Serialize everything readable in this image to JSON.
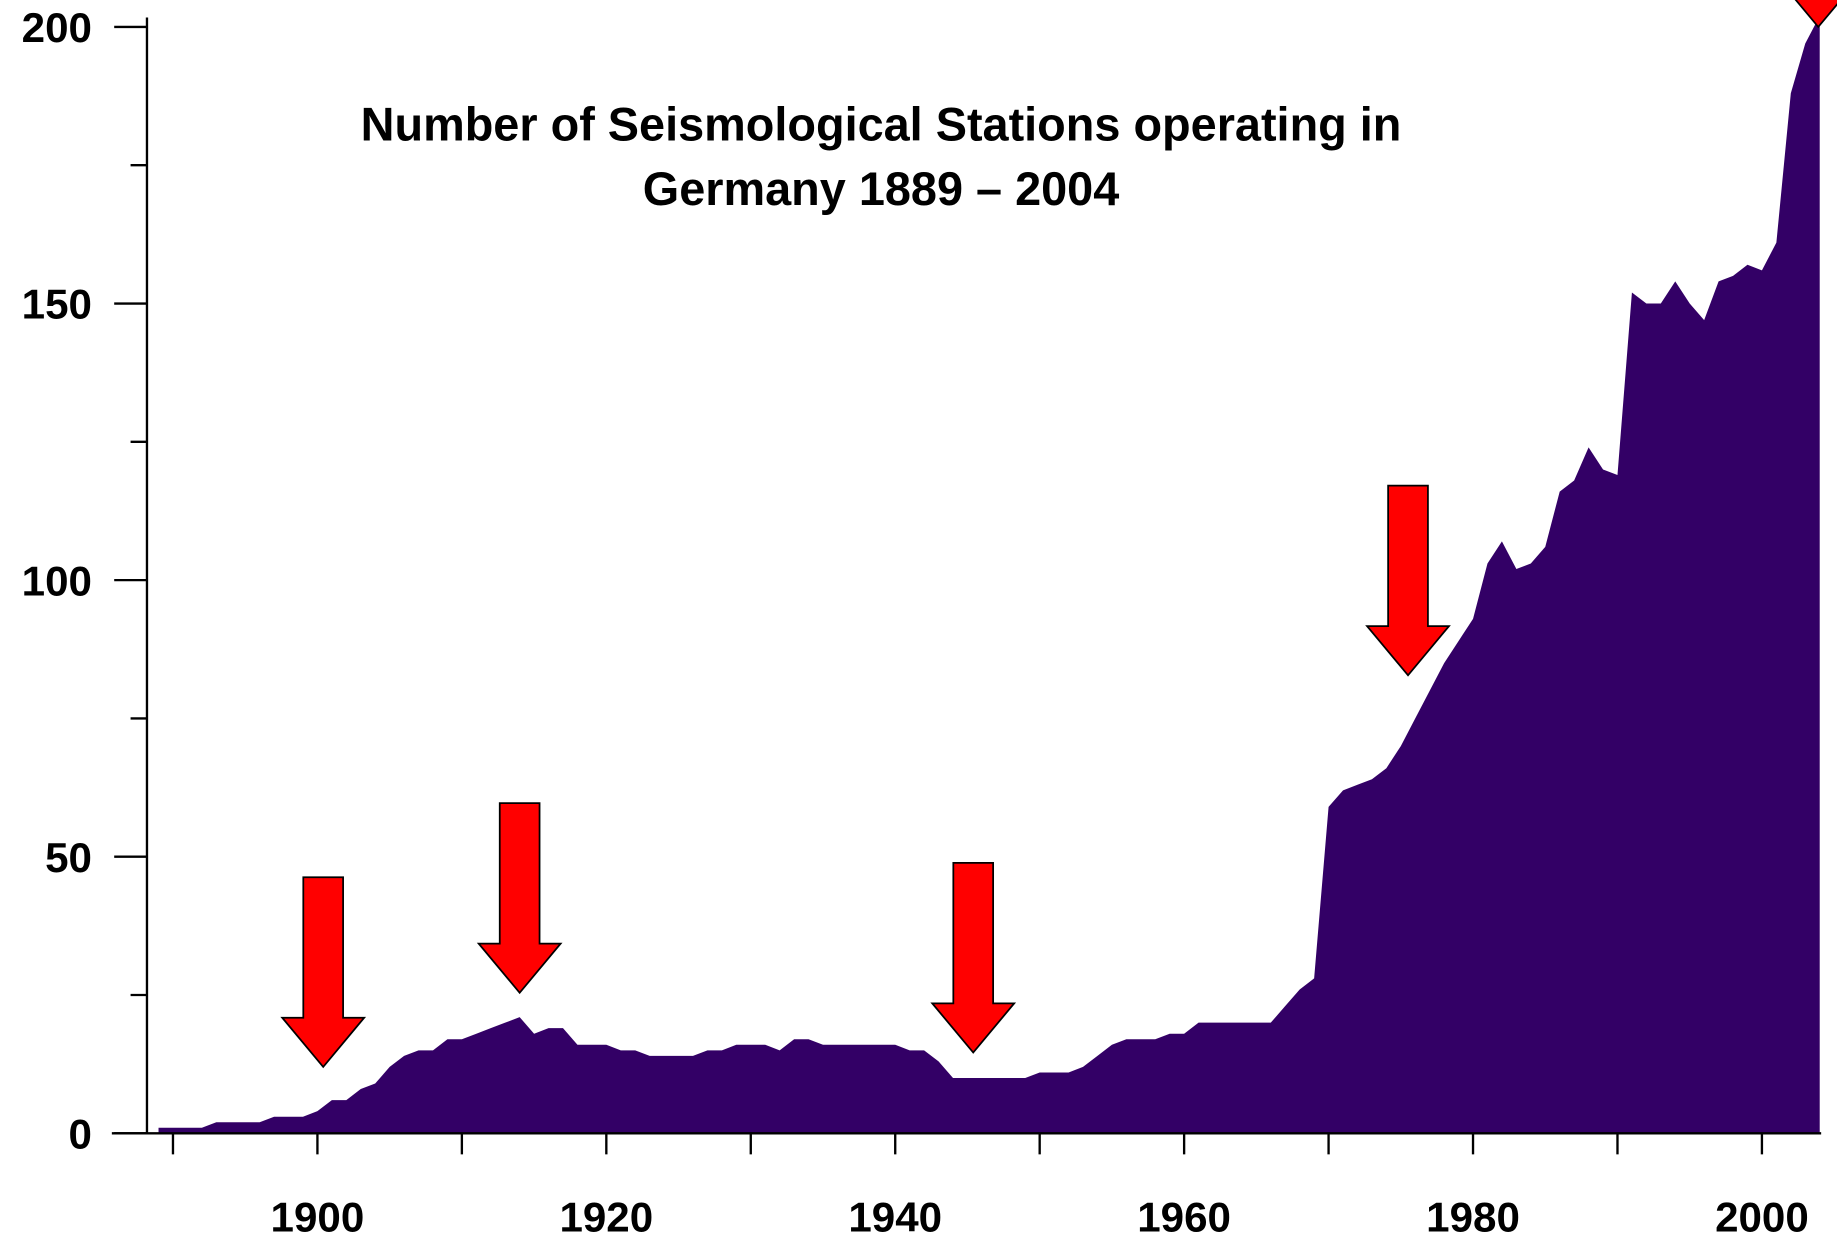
{
  "chart_data": {
    "type": "area",
    "title": [
      "Number of Seismological Stations operating in",
      "Germany 1889 – 2004"
    ],
    "color": "#330066",
    "x": [
      1889,
      1890,
      1891,
      1892,
      1893,
      1894,
      1895,
      1896,
      1897,
      1898,
      1899,
      1900,
      1901,
      1902,
      1903,
      1904,
      1905,
      1906,
      1907,
      1908,
      1909,
      1910,
      1911,
      1912,
      1913,
      1914,
      1915,
      1916,
      1917,
      1918,
      1919,
      1920,
      1921,
      1922,
      1923,
      1924,
      1925,
      1926,
      1927,
      1928,
      1929,
      1930,
      1931,
      1932,
      1933,
      1934,
      1935,
      1936,
      1937,
      1938,
      1939,
      1940,
      1941,
      1942,
      1943,
      1944,
      1945,
      1946,
      1947,
      1948,
      1949,
      1950,
      1951,
      1952,
      1953,
      1954,
      1955,
      1956,
      1957,
      1958,
      1959,
      1960,
      1961,
      1962,
      1963,
      1964,
      1965,
      1966,
      1967,
      1968,
      1969,
      1970,
      1971,
      1972,
      1973,
      1974,
      1975,
      1976,
      1977,
      1978,
      1979,
      1980,
      1981,
      1982,
      1983,
      1984,
      1985,
      1986,
      1987,
      1988,
      1989,
      1990,
      1991,
      1992,
      1993,
      1994,
      1995,
      1996,
      1997,
      1998,
      1999,
      2000,
      2001,
      2002,
      2003,
      2004
    ],
    "values": [
      1,
      1,
      1,
      1,
      2,
      2,
      2,
      2,
      3,
      3,
      3,
      4,
      6,
      6,
      8,
      9,
      12,
      14,
      15,
      15,
      17,
      17,
      18,
      19,
      20,
      21,
      18,
      19,
      19,
      16,
      16,
      16,
      15,
      15,
      14,
      14,
      14,
      14,
      15,
      15,
      16,
      16,
      16,
      15,
      17,
      17,
      16,
      16,
      16,
      16,
      16,
      16,
      15,
      15,
      13,
      10,
      10,
      10,
      10,
      10,
      10,
      11,
      11,
      11,
      12,
      14,
      16,
      17,
      17,
      17,
      18,
      18,
      20,
      20,
      20,
      20,
      20,
      20,
      23,
      26,
      28,
      59,
      62,
      63,
      64,
      66,
      70,
      75,
      80,
      85,
      89,
      93,
      103,
      107,
      102,
      103,
      106,
      116,
      118,
      124,
      120,
      119,
      152,
      150,
      150,
      154,
      150,
      147,
      154,
      155,
      157,
      156,
      161,
      188,
      197,
      202
    ],
    "xlim": [
      1888.2,
      2004.1
    ],
    "ylim": [
      0,
      200
    ],
    "xticks": [
      1900,
      1920,
      1940,
      1960,
      1980,
      2000
    ],
    "xminor_ticks": [
      1890,
      1910,
      1930,
      1950,
      1970,
      1990
    ],
    "yticks": [
      0,
      50,
      100,
      150,
      200
    ],
    "yminor_ticks": [
      25,
      75,
      125,
      175
    ],
    "arrow_color": "#ff0000",
    "arrows": [
      {
        "x": 1900.4,
        "y": 12
      },
      {
        "x": 1914,
        "y": 25.4
      },
      {
        "x": 1945.4,
        "y": 14.6
      },
      {
        "x": 1975.5,
        "y": 82.8
      },
      {
        "x": 2003.9,
        "y": 200
      }
    ]
  }
}
